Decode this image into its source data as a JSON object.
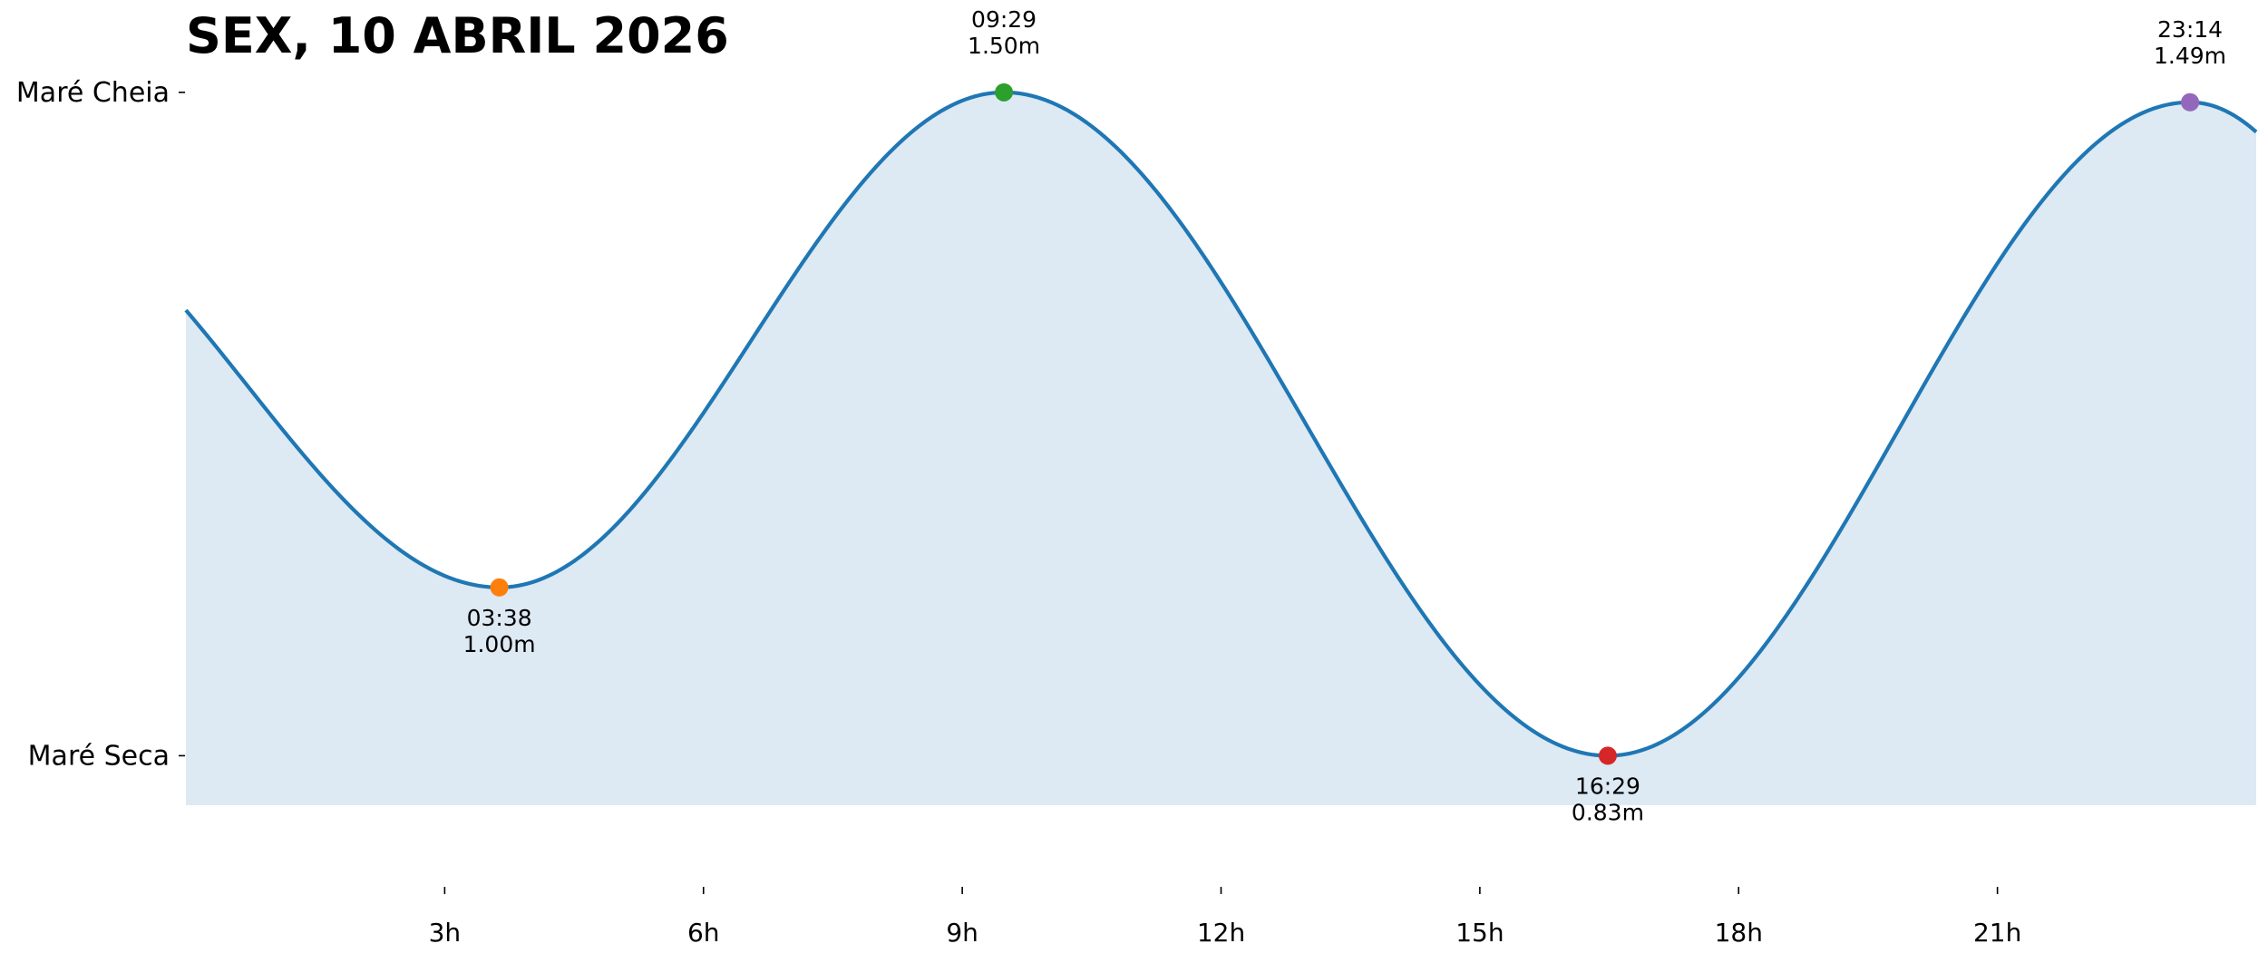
{
  "chart_data": {
    "type": "area",
    "title": "SEX, 10 ABRIL 2026",
    "xlabel": "",
    "ylabel": "",
    "xlim": [
      0,
      24
    ],
    "ylim": [
      0.78,
      1.52
    ],
    "x_ticks": [
      {
        "value": 3,
        "label": "3h"
      },
      {
        "value": 6,
        "label": "6h"
      },
      {
        "value": 9,
        "label": "9h"
      },
      {
        "value": 12,
        "label": "12h"
      },
      {
        "value": 15,
        "label": "15h"
      },
      {
        "value": 18,
        "label": "18h"
      },
      {
        "value": 21,
        "label": "21h"
      }
    ],
    "y_ticks": [
      {
        "value": 1.5,
        "label": "Maré Cheia"
      },
      {
        "value": 0.83,
        "label": "Maré Seca"
      }
    ],
    "tide_extremes": [
      {
        "time": "03:38",
        "hour": 3.633,
        "height": 1.0,
        "height_label": "1.00m",
        "kind": "low",
        "color": "#ff7f0e"
      },
      {
        "time": "09:29",
        "hour": 9.483,
        "height": 1.5,
        "height_label": "1.50m",
        "kind": "high",
        "color": "#2ca02c"
      },
      {
        "time": "16:29",
        "hour": 16.483,
        "height": 0.83,
        "height_label": "0.83m",
        "kind": "low",
        "color": "#d62728"
      },
      {
        "time": "23:14",
        "hour": 23.233,
        "height": 1.49,
        "height_label": "1.49m",
        "kind": "high",
        "color": "#9467bd"
      }
    ],
    "curve_start": {
      "hour": 0,
      "height": 1.28
    },
    "curve_end": {
      "hour": 24,
      "height": 1.46
    },
    "line_color": "#1f77b4",
    "fill_color": "#dde9f3",
    "grid": false,
    "legend": "none"
  }
}
